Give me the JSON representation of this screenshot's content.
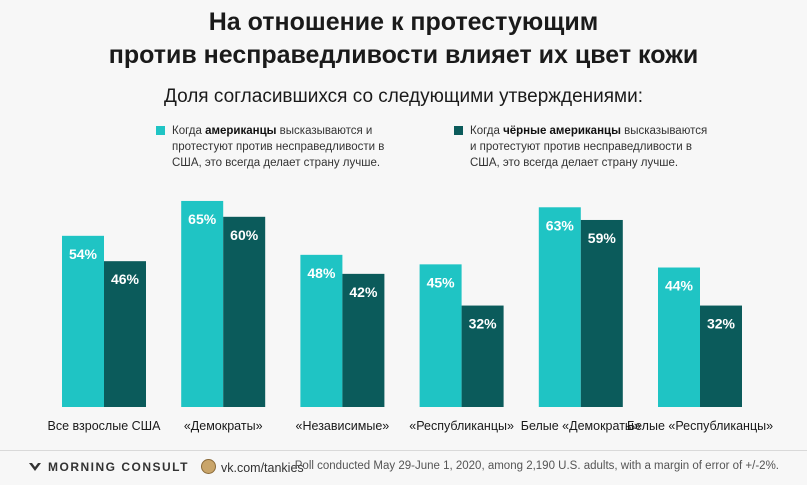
{
  "title_line1": "На отношение к протестующим",
  "title_line2": "против несправедливости влияет их цвет кожи",
  "subtitle": "Доля согласившихся со следующими утверждениями:",
  "legend": [
    {
      "pre": "Когда ",
      "bold": "американцы",
      "post": " высказываются и протестуют против несправедливости в США, это всегда делает страну лучше.",
      "color": "#1fc4c4"
    },
    {
      "pre": "Когда ",
      "bold": "чёрные американцы",
      "post": " высказываются и протестуют против несправедливости в США, это всегда делает страну лучше.",
      "color": "#0b5b5b"
    }
  ],
  "chart_data": {
    "type": "bar",
    "categories": [
      "Все взрослые США",
      "«Демократы»",
      "«Независимые»",
      "«Республиканцы»",
      "Белые «Демократы»",
      "Белые «Республиканцы»"
    ],
    "series": [
      {
        "values": [
          54,
          65,
          48,
          45,
          63,
          44
        ],
        "color": "#1fc4c4"
      },
      {
        "values": [
          46,
          60,
          42,
          32,
          59,
          32
        ],
        "color": "#0b5b5b"
      }
    ],
    "value_suffix": "%",
    "ylim": [
      0,
      70
    ],
    "grid": false
  },
  "footer": {
    "brand": "MORNING CONSULT",
    "vk": "vk.com/tankies",
    "note": "Poll conducted May 29-June 1, 2020, among 2,190 U.S. adults, with a margin of error of +/-2%."
  }
}
